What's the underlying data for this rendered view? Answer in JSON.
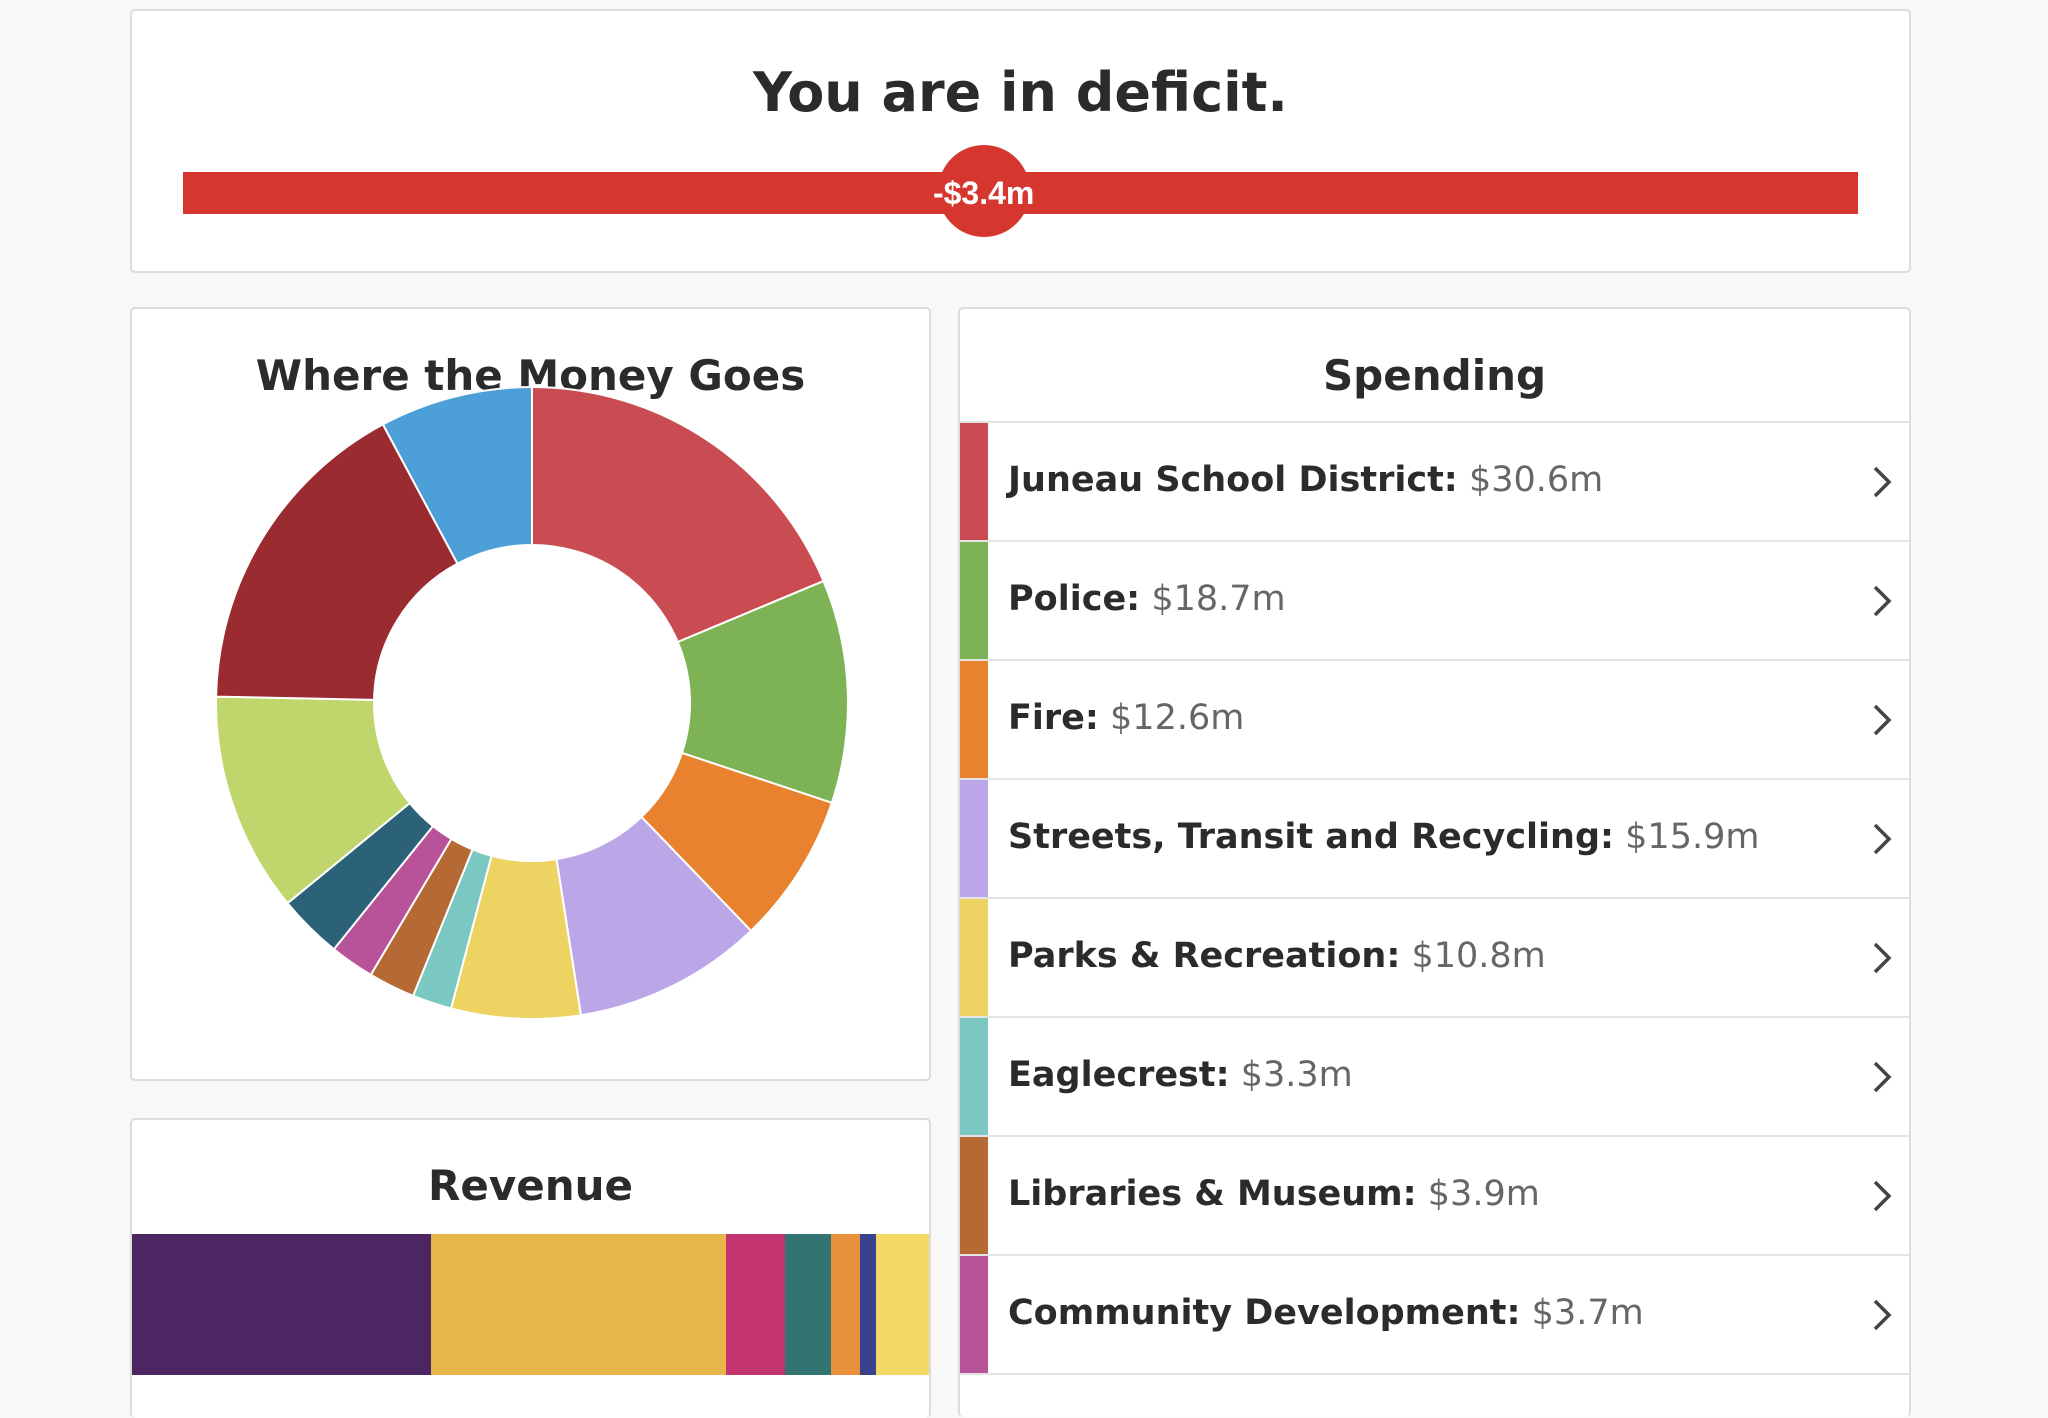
{
  "deficit": {
    "title": "You are in deficit.",
    "value_label": "-$3.4m",
    "marker_fraction": 0.478,
    "bar_color": "#d5362e"
  },
  "money": {
    "title": "Where the Money Goes"
  },
  "chart_data": {
    "type": "pie",
    "values": [
      30.6,
      18.7,
      12.6,
      15.9,
      10.8,
      3.3,
      3.9,
      3.7,
      5.4,
      18.4,
      27.6,
      12.8
    ],
    "colors": [
      "#c94c53",
      "#7db355",
      "#e8822f",
      "#bba7e8",
      "#edd361",
      "#7bc7c1",
      "#b56a35",
      "#b8539a",
      "#2b6277",
      "#bfd66c",
      "#9a2b30",
      "#4d9fd8"
    ],
    "legend_refs": [
      "Juneau School District",
      "Police",
      "Fire",
      "Streets, Transit and Recycling",
      "Parks & Recreation",
      "Eaglecrest",
      "Libraries & Museum",
      "Community Development",
      "",
      "",
      "",
      ""
    ]
  },
  "revenue": {
    "title": "Revenue",
    "segments": [
      {
        "color": "#4b2662",
        "fraction": 0.375
      },
      {
        "color": "#e7b64b",
        "fraction": 0.37
      },
      {
        "color": "#c2336f",
        "fraction": 0.074
      },
      {
        "color": "#317472",
        "fraction": 0.058
      },
      {
        "color": "#e8903a",
        "fraction": 0.037
      },
      {
        "color": "#3a4290",
        "fraction": 0.02
      },
      {
        "color": "#f2d965",
        "fraction": 0.066
      }
    ]
  },
  "spending": {
    "title": "Spending",
    "items": [
      {
        "name": "Juneau School District:",
        "amount": "$30.6m",
        "color": "#c94c53"
      },
      {
        "name": "Police:",
        "amount": "$18.7m",
        "color": "#7db355"
      },
      {
        "name": "Fire:",
        "amount": "$12.6m",
        "color": "#e8822f"
      },
      {
        "name": "Streets, Transit and Recycling:",
        "amount": "$15.9m",
        "color": "#bba7e8"
      },
      {
        "name": "Parks & Recreation:",
        "amount": "$10.8m",
        "color": "#edd361"
      },
      {
        "name": "Eaglecrest:",
        "amount": "$3.3m",
        "color": "#7bc7c1"
      },
      {
        "name": "Libraries & Museum:",
        "amount": "$3.9m",
        "color": "#b56a35"
      },
      {
        "name": "Community Development:",
        "amount": "$3.7m",
        "color": "#b8539a"
      }
    ]
  }
}
